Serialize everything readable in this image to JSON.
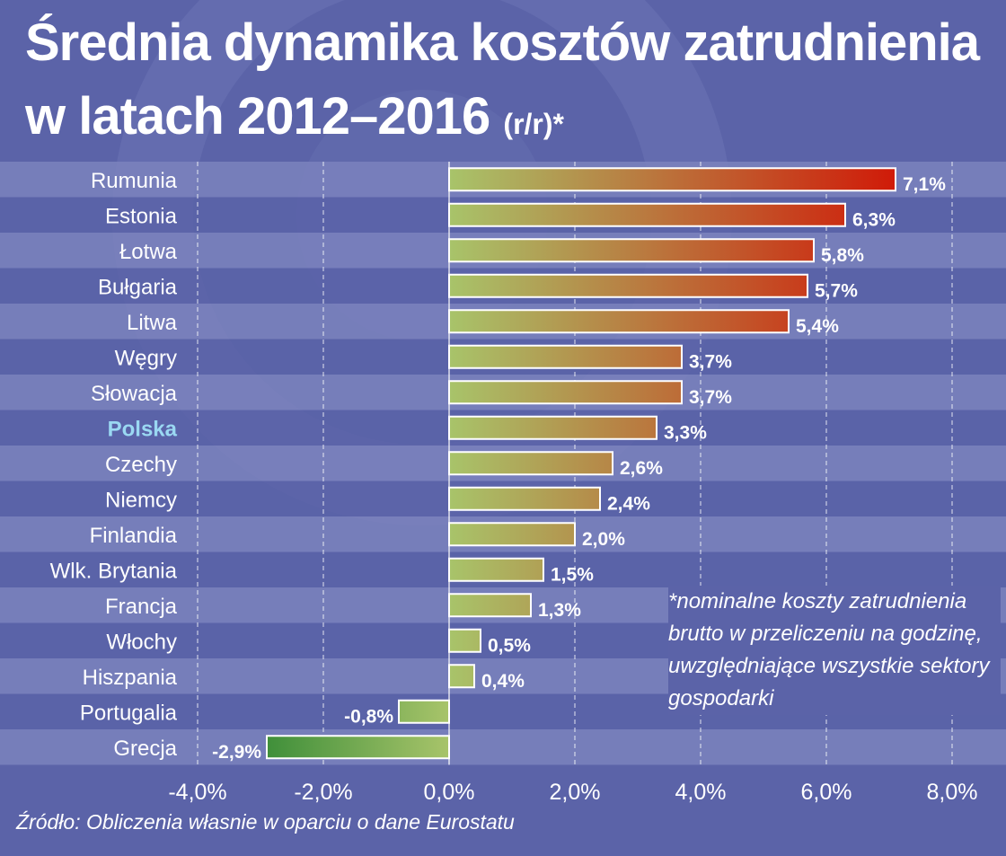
{
  "colors": {
    "background": "#5b63a8",
    "stripe_light": "#7b82bd",
    "stripe_dark": "#5b63a8",
    "bar_low": "#a8c46a",
    "bar_high": "#d01a08",
    "bar_negative": "#3f8f3a",
    "highlight_label": "#9ad8f2",
    "text": "#ffffff"
  },
  "header": {
    "title_line1": "Średnia dynamika kosztów zatrudnienia",
    "title_line2": "w latach 2012–2016",
    "title_unit": "(r/r)*"
  },
  "footnote": "*nominalne koszty zatrudnienia brutto w przeliczeniu na godzinę, uwzględniające wszystkie sektory gospodarki",
  "source": "Źródło: Obliczenia własnie w oparciu o dane Eurostatu",
  "chart_data": {
    "type": "bar",
    "orientation": "horizontal",
    "title": "Średnia dynamika kosztów zatrudnienia w latach 2012–2016 (r/r)*",
    "categories": [
      "Rumunia",
      "Estonia",
      "Łotwa",
      "Bułgaria",
      "Litwa",
      "Węgry",
      "Słowacja",
      "Polska",
      "Czechy",
      "Niemcy",
      "Finlandia",
      "Wlk. Brytania",
      "Francja",
      "Włochy",
      "Hiszpania",
      "Portugalia",
      "Grecja"
    ],
    "values": [
      7.1,
      6.3,
      5.8,
      5.7,
      5.4,
      3.7,
      3.7,
      3.3,
      2.6,
      2.4,
      2.0,
      1.5,
      1.3,
      0.5,
      0.4,
      -0.8,
      -2.9
    ],
    "value_labels": [
      "7,1%",
      "6,3%",
      "5,8%",
      "5,7%",
      "5,4%",
      "3,7%",
      "3,7%",
      "3,3%",
      "2,6%",
      "2,4%",
      "2,0%",
      "1,5%",
      "1,3%",
      "0,5%",
      "0,4%",
      "-0,8%",
      "-2,9%"
    ],
    "highlight": "Polska",
    "xlim": [
      -4,
      8
    ],
    "xticks": [
      -4,
      -2,
      0,
      2,
      4,
      6,
      8
    ],
    "xtick_labels": [
      "-4,0%",
      "-2,0%",
      "0,0%",
      "2,0%",
      "4,0%",
      "6,0%",
      "8,0%"
    ],
    "xlabel": "",
    "ylabel": "",
    "grid": true
  }
}
